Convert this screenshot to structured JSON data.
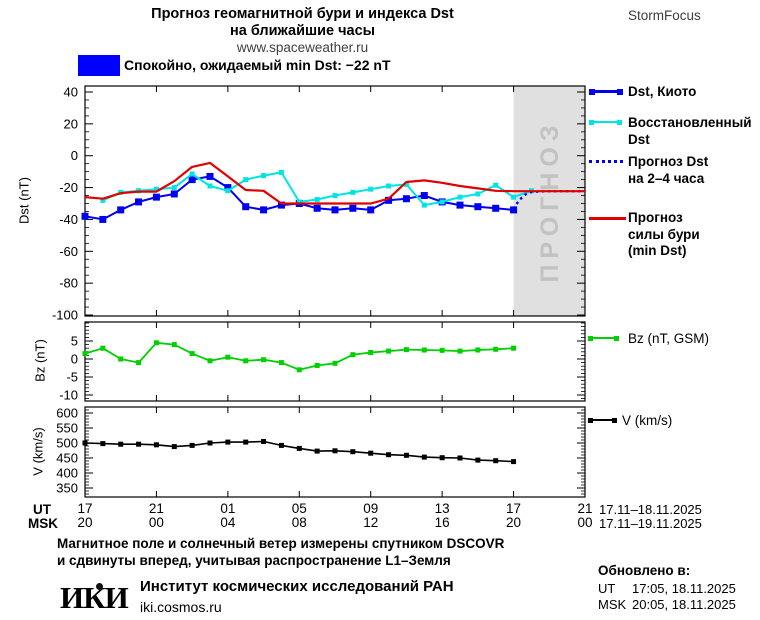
{
  "header": {
    "title_line1": "Прогноз геомагнитной бури и индекса Dst",
    "title_line2": "на ближайшие часы",
    "url": "www.spaceweather.ru",
    "brand": "StormFocus"
  },
  "status": {
    "label": "Спокойно, ожидаемый min Dst: −22 nT",
    "box_color": "#0000ff"
  },
  "colors": {
    "kyoto_blue": "#0000f0",
    "restored_cyan": "#00e4e4",
    "forecast_red": "#e00000",
    "bz_green": "#00cf00",
    "v_black": "#000000",
    "band_gray": "#e0e0e0",
    "band_label_gray": "#c2c2c2"
  },
  "legend": {
    "kyoto": {
      "label": "Dst, Киото"
    },
    "restored": {
      "line1": "Восстановленный",
      "line2": "Dst"
    },
    "forecast_dst": {
      "line1": "Прогноз Dst",
      "line2": "на 2–4 часа"
    },
    "storm_force": {
      "line1": "Прогноз",
      "line2": "силы бури",
      "line3": "(min Dst)"
    },
    "bz": {
      "label": "Bz (nT, GSM)"
    },
    "v": {
      "label": "V (km/s)"
    }
  },
  "xaxis": {
    "ut_label": "UT",
    "msk_label": "MSK",
    "ut_hours": [
      "17",
      "21",
      "01",
      "05",
      "09",
      "13",
      "17",
      "21"
    ],
    "msk_hours": [
      "20",
      "00",
      "04",
      "08",
      "12",
      "16",
      "20",
      "00"
    ],
    "date_range_ut": "17.11–18.11.2025",
    "date_range_msk": "17.11–19.11.2025"
  },
  "chart_data": [
    {
      "type": "line",
      "title": "Dst index measured and forecast",
      "ylabel": "Dst (nT)",
      "ylim": [
        -100,
        40
      ],
      "yticks": [
        40,
        20,
        0,
        -20,
        -40,
        -60,
        -80,
        -100
      ],
      "x_unit": "hours from 17:00 UT 17.11.2025, 1 h step, ticks every 4 h",
      "forecast_band": {
        "from_hour": 24,
        "to_hour": 28,
        "label": "ПРОГНОЗ"
      },
      "series": [
        {
          "name": "Dst, Киото",
          "color": "#0000f0",
          "marker": "square",
          "marker_size": 7,
          "line_width": 2,
          "x": [
            0,
            1,
            2,
            3,
            4,
            5,
            6,
            7,
            8,
            9,
            10,
            11,
            12,
            13,
            14,
            15,
            16,
            17,
            18,
            19,
            20,
            21,
            22,
            23,
            24
          ],
          "values": [
            -38,
            -40,
            -34,
            -29,
            -26,
            -24,
            -15,
            -13,
            -20,
            -32,
            -34,
            -31,
            -30,
            -33,
            -34,
            -33,
            -34,
            -28,
            -27,
            -25,
            -29,
            -31,
            -32,
            -33,
            -34
          ]
        },
        {
          "name": "Восстановленный Dst",
          "color": "#00e4e4",
          "marker": "square",
          "marker_size": 5,
          "line_width": 2,
          "x": [
            1,
            2,
            3,
            4,
            5,
            6,
            7,
            8,
            9,
            10,
            11,
            12,
            13,
            14,
            15,
            16,
            17,
            18,
            19,
            20,
            21,
            22,
            23,
            24,
            25
          ],
          "values": [
            -28,
            -23,
            -22,
            -21,
            -20,
            -11.5,
            -19,
            -22,
            -15,
            -12.5,
            -10.5,
            -29,
            -27.5,
            -25,
            -23,
            -21,
            -19,
            -18,
            -31,
            -29,
            -26,
            -24,
            -18.5,
            -26,
            -22
          ]
        },
        {
          "name": "Прогноз Dst на 2–4 часа",
          "color": "#0000f0",
          "style": "dotted",
          "line_width": 2.4,
          "x": [
            24,
            24.3,
            24.7,
            25,
            25.5,
            26,
            26.5,
            27,
            27.5,
            28
          ],
          "values": [
            -33.5,
            -28,
            -24,
            -22.8,
            -22.4,
            -22.3,
            -22.3,
            -22.3,
            -22.3,
            -22.3
          ]
        },
        {
          "name": "Прогноз силы бури (min Dst)",
          "color": "#e00000",
          "line_width": 2.2,
          "x": [
            0,
            1,
            2,
            3,
            4,
            5,
            6,
            7,
            8,
            9,
            10,
            11,
            12,
            13,
            14,
            15,
            16,
            17,
            18,
            19,
            20,
            21,
            22,
            23,
            24,
            25,
            26,
            27,
            28
          ],
          "values": [
            -26,
            -27,
            -23.5,
            -22.5,
            -22.5,
            -16,
            -7,
            -4.5,
            -13,
            -21.5,
            -22,
            -30,
            -30,
            -30,
            -30,
            -30,
            -30,
            -27,
            -16.5,
            -15.5,
            -17,
            -19,
            -20.5,
            -22,
            -22.3,
            -22.3,
            -22.3,
            -22.3,
            -22.3
          ]
        }
      ]
    },
    {
      "type": "line",
      "title": "Bz component of interplanetary magnetic field",
      "ylabel": "Bz (nT)",
      "ylim": [
        -12,
        10
      ],
      "yticks": [
        5,
        0,
        -5,
        -10
      ],
      "series": [
        {
          "name": "Bz (nT, GSM)",
          "color": "#00cf00",
          "marker": "square",
          "marker_size": 5,
          "line_width": 1.8,
          "x": [
            0,
            1,
            2,
            3,
            4,
            5,
            6,
            7,
            8,
            9,
            10,
            11,
            12,
            13,
            14,
            15,
            16,
            17,
            18,
            19,
            20,
            21,
            22,
            23,
            24
          ],
          "values": [
            1.5,
            3,
            0,
            -1,
            4.5,
            4,
            1.5,
            -0.5,
            0.5,
            -0.5,
            -0.2,
            -1,
            -3,
            -1.8,
            -1.2,
            1.2,
            1.8,
            2.2,
            2.6,
            2.5,
            2.4,
            2.2,
            2.5,
            2.7,
            3
          ]
        }
      ]
    },
    {
      "type": "line",
      "title": "Solar wind speed",
      "ylabel": "V (km/s)",
      "ylim": [
        320,
        620
      ],
      "yticks": [
        600,
        550,
        500,
        450,
        400,
        350
      ],
      "series": [
        {
          "name": "V (km/s)",
          "color": "#000000",
          "marker": "square",
          "marker_size": 5,
          "line_width": 1.6,
          "x": [
            0,
            1,
            2,
            3,
            4,
            5,
            6,
            7,
            8,
            9,
            10,
            11,
            12,
            13,
            14,
            15,
            16,
            17,
            18,
            19,
            20,
            21,
            22,
            23,
            24
          ],
          "values": [
            500,
            498,
            496,
            496,
            494,
            488,
            492,
            500,
            503,
            503,
            505,
            492,
            482,
            473,
            474,
            471,
            466,
            461,
            459,
            453,
            451,
            450,
            443,
            441,
            438
          ]
        }
      ]
    }
  ],
  "footer": {
    "note_line1": "Магнитное поле и солнечный ветер измерены спутником DSCOVR",
    "note_line2": "и сдвинуты вперед, учитывая распространение L1–Земля",
    "updated": {
      "title": "Обновлено в:",
      "ut_label": "UT",
      "ut_value": "17:05, 18.11.2025",
      "msk_label": "MSK",
      "msk_value": "20:05, 18.11.2025"
    },
    "logo_text": "ИКИ",
    "institute": "Институт космических исследований РАН",
    "site": "iki.cosmos.ru"
  }
}
